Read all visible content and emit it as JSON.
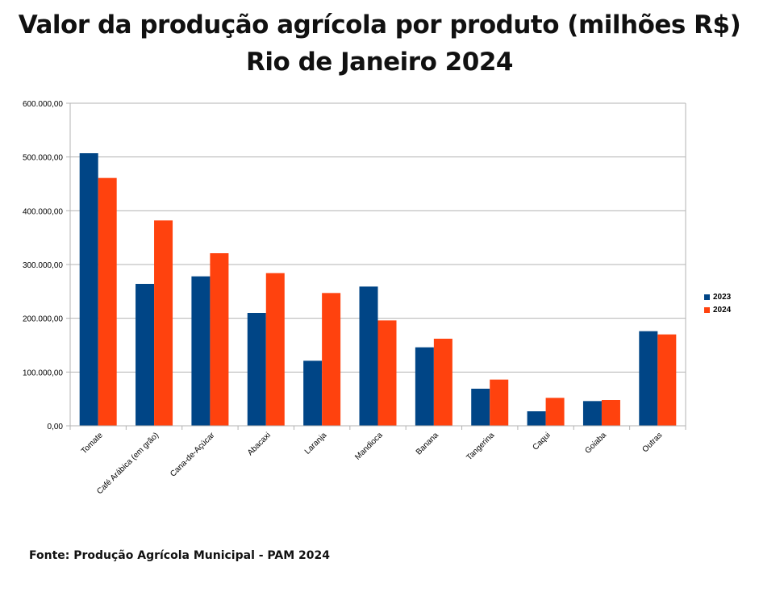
{
  "header": {
    "title_line1": "Valor da produção agrícola por produto (milhões R$)",
    "title_line2": "Rio de Janeiro 2024"
  },
  "footer": {
    "source": "Fonte: Produção Agrícola Municipal - PAM 2024"
  },
  "colors": {
    "series_2023": "#004586",
    "series_2024": "#ff420e",
    "grid": "#b3b3b3"
  },
  "chart_data": {
    "type": "bar",
    "title": "Valor da produção agrícola por produto (milhões R$) Rio de Janeiro 2024",
    "xlabel": "",
    "ylabel": "",
    "ylim": [
      0,
      600000
    ],
    "yticks": [
      0,
      100000,
      200000,
      300000,
      400000,
      500000,
      600000
    ],
    "ytick_labels": [
      "0,00",
      "100.000,00",
      "200.000,00",
      "300.000,00",
      "400.000,00",
      "500.000,00",
      "600.000,00"
    ],
    "grid": true,
    "legend_position": "right",
    "categories": [
      "Tomate",
      "Café Arábica (em grão)",
      "Cana-de-Açúcar",
      "Abacaxi",
      "Laranja",
      "Mandioca",
      "Banana",
      "Tangerina",
      "Caqui",
      "Goiaba",
      "Outras"
    ],
    "series": [
      {
        "name": "2023",
        "values": [
          507000,
          264000,
          278000,
          210000,
          121000,
          259000,
          146000,
          69000,
          27000,
          46000,
          176000
        ]
      },
      {
        "name": "2024",
        "values": [
          461000,
          382000,
          321000,
          284000,
          247000,
          196000,
          162000,
          86000,
          52000,
          48000,
          170000
        ]
      }
    ]
  }
}
